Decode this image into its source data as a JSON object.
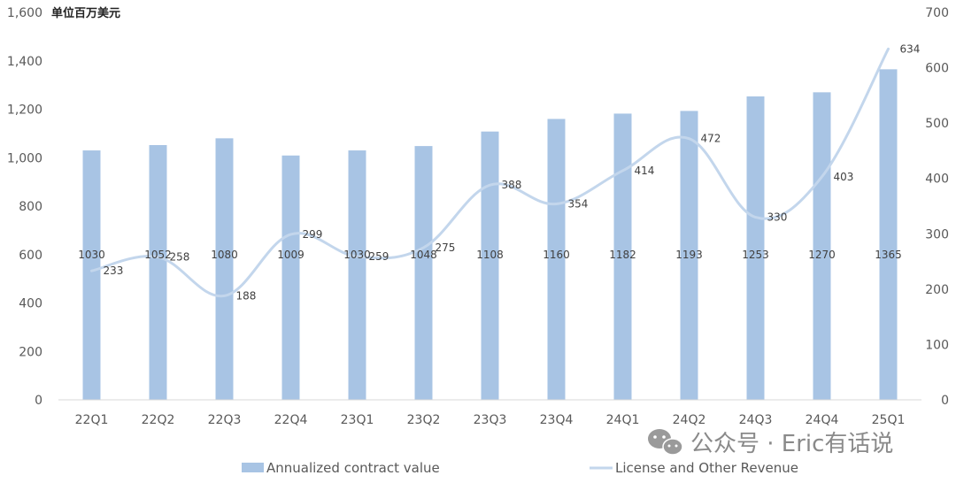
{
  "chart_data": {
    "type": "bar+line",
    "unit_label": "单位百万美元",
    "categories": [
      "22Q1",
      "22Q2",
      "22Q3",
      "22Q4",
      "23Q1",
      "23Q2",
      "23Q3",
      "23Q4",
      "24Q1",
      "24Q2",
      "24Q3",
      "24Q4",
      "25Q1"
    ],
    "series": [
      {
        "name": "Annualized contract value",
        "type": "bar",
        "axis": "left",
        "values": [
          1030,
          1052,
          1080,
          1009,
          1030,
          1048,
          1108,
          1160,
          1182,
          1193,
          1253,
          1270,
          1365
        ]
      },
      {
        "name": "License and Other Revenue",
        "type": "line",
        "smooth": true,
        "axis": "right",
        "values": [
          233,
          258,
          188,
          299,
          259,
          275,
          388,
          354,
          414,
          472,
          330,
          403,
          634
        ]
      }
    ],
    "y_left": {
      "min": 0,
      "max": 1600,
      "step": 200,
      "ticks": [
        "0",
        "200",
        "400",
        "600",
        "800",
        "1,000",
        "1,200",
        "1,400",
        "1,600"
      ]
    },
    "y_right": {
      "min": 0,
      "max": 700,
      "step": 100,
      "ticks": [
        "0",
        "100",
        "200",
        "300",
        "400",
        "500",
        "600",
        "700"
      ]
    },
    "legend_position": "bottom",
    "grid": false,
    "colors": {
      "bar": "#a8c4e4",
      "line": "#c3d6ec"
    }
  },
  "watermark": {
    "text": "公众号 · Eric有话说",
    "icon": "wechat-icon"
  }
}
